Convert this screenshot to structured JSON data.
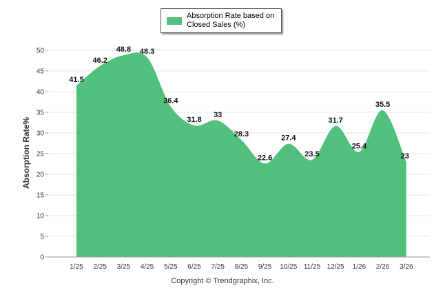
{
  "footer": "Copyright © Trendgraphix, Inc.",
  "colors": {
    "area": "#52c07c",
    "grid": "#e6e6e6",
    "axis": "#999999"
  },
  "chart_data": {
    "type": "area",
    "title": "",
    "xlabel": "",
    "ylabel": "Absorption Rate%",
    "legend_position": "top-center",
    "grid": true,
    "ylim": [
      0,
      50
    ],
    "yticks": [
      "0",
      "5",
      "10",
      "15",
      "20",
      "25",
      "30",
      "35",
      "40",
      "45",
      "50"
    ],
    "categories": [
      "1/25",
      "2/25",
      "3/25",
      "4/25",
      "5/25",
      "6/25",
      "7/25",
      "8/25",
      "9/25",
      "10/25",
      "11/25",
      "12/25",
      "1/26",
      "2/26",
      "3/26"
    ],
    "series": [
      {
        "name": "Absorption Rate based on Closed Sales (%)",
        "values": [
          41.5,
          46.2,
          48.8,
          48.3,
          36.4,
          31.8,
          33,
          28.3,
          22.6,
          27.4,
          23.5,
          31.7,
          25.4,
          35.5,
          23
        ],
        "labels": [
          "41.5",
          "46.2",
          "48.8",
          "48.3",
          "36.4",
          "31.8",
          "33",
          "28.3",
          "22.6",
          "27.4",
          "23.5",
          "31.7",
          "25.4",
          "35.5",
          "23"
        ]
      }
    ]
  }
}
